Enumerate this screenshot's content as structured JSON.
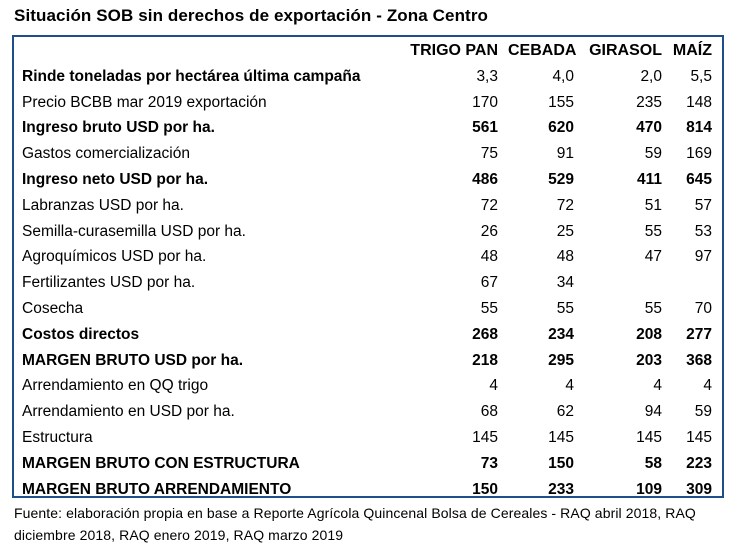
{
  "title": "Situación SOB sin derechos de exportación - Zona Centro",
  "table": {
    "columns": [
      "TRIGO PAN",
      "CEBADA",
      "GIRASOL",
      "MAÍZ"
    ],
    "rows": [
      {
        "label": "Rinde toneladas por hectárea última campaña",
        "values": [
          "3,3",
          "4,0",
          "2,0",
          "5,5"
        ],
        "bold_label": true,
        "bold_values": false
      },
      {
        "label": "Precio BCBB mar 2019 exportación",
        "values": [
          "170",
          "155",
          "235",
          "148"
        ],
        "bold_label": false,
        "bold_values": false
      },
      {
        "label": "Ingreso bruto USD por ha.",
        "values": [
          "561",
          "620",
          "470",
          "814"
        ],
        "bold_label": true,
        "bold_values": true
      },
      {
        "label": "Gastos comercialización",
        "values": [
          "75",
          "91",
          "59",
          "169"
        ],
        "bold_label": false,
        "bold_values": false
      },
      {
        "label": "Ingreso neto USD por ha.",
        "values": [
          "486",
          "529",
          "411",
          "645"
        ],
        "bold_label": true,
        "bold_values": true
      },
      {
        "label": "Labranzas USD por ha.",
        "values": [
          "72",
          "72",
          "51",
          "57"
        ],
        "bold_label": false,
        "bold_values": false
      },
      {
        "label": "Semilla-curasemilla USD por ha.",
        "values": [
          "26",
          "25",
          "55",
          "53"
        ],
        "bold_label": false,
        "bold_values": false
      },
      {
        "label": "Agroquímicos USD por ha.",
        "values": [
          "48",
          "48",
          "47",
          "97"
        ],
        "bold_label": false,
        "bold_values": false
      },
      {
        "label": "Fertilizantes USD por ha.",
        "values": [
          "67",
          "34",
          "",
          ""
        ],
        "bold_label": false,
        "bold_values": false
      },
      {
        "label": "Cosecha",
        "values": [
          "55",
          "55",
          "55",
          "70"
        ],
        "bold_label": false,
        "bold_values": false
      },
      {
        "label": "Costos directos",
        "values": [
          "268",
          "234",
          "208",
          "277"
        ],
        "bold_label": true,
        "bold_values": true
      },
      {
        "label": "MARGEN BRUTO USD por ha.",
        "values": [
          "218",
          "295",
          "203",
          "368"
        ],
        "bold_label": true,
        "bold_values": true
      },
      {
        "label": "Arrendamiento en QQ trigo",
        "values": [
          "4",
          "4",
          "4",
          "4"
        ],
        "bold_label": false,
        "bold_values": false
      },
      {
        "label": "Arrendamiento en USD por ha.",
        "values": [
          "68",
          "62",
          "94",
          "59"
        ],
        "bold_label": false,
        "bold_values": false
      },
      {
        "label": "Estructura",
        "values": [
          "145",
          "145",
          "145",
          "145"
        ],
        "bold_label": false,
        "bold_values": false
      },
      {
        "label": "MARGEN BRUTO CON ESTRUCTURA",
        "values": [
          "73",
          "150",
          "58",
          "223"
        ],
        "bold_label": true,
        "bold_values": true
      },
      {
        "label": "MARGEN BRUTO ARRENDAMIENTO",
        "values": [
          "150",
          "233",
          "109",
          "309"
        ],
        "bold_label": true,
        "bold_values": true
      }
    ]
  },
  "footer": "Fuente: elaboración propia en base a Reporte Agrícola Quincenal Bolsa de Cereales  - RAQ abril 2018, RAQ diciembre 2018, RAQ enero 2019, RAQ marzo 2019",
  "colors": {
    "border": "#1f4e8c",
    "text": "#000000",
    "background": "#ffffff"
  }
}
